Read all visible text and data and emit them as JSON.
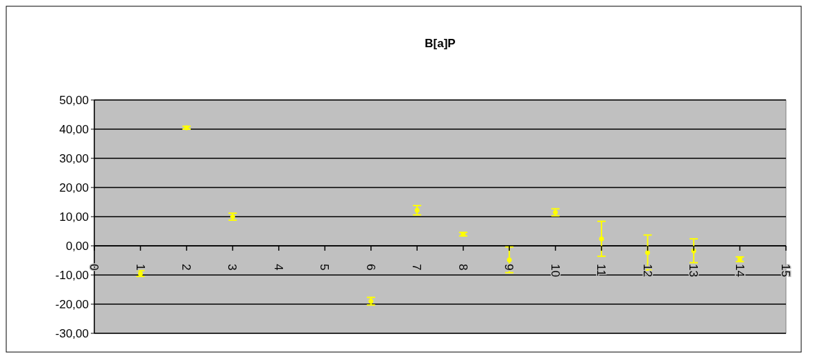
{
  "chart_data": {
    "type": "scatter",
    "title": "B[a]P",
    "x": [
      1,
      2,
      3,
      6,
      7,
      8,
      9,
      10,
      11,
      12,
      13,
      14
    ],
    "series": [
      {
        "color": "#ffff00",
        "values": [
          -9.5,
          40.5,
          10,
          -19,
          12.2,
          4,
          -4.8,
          11.5,
          2.4,
          -2.3,
          -1.7,
          -4.6
        ],
        "errors": [
          1,
          0.5,
          1.2,
          1.3,
          1.6,
          0.6,
          4.4,
          1.2,
          6,
          6,
          4.1,
          0.8
        ]
      }
    ],
    "xlim": [
      0,
      15
    ],
    "xticks": [
      0,
      1,
      2,
      3,
      4,
      5,
      6,
      7,
      8,
      9,
      10,
      11,
      12,
      13,
      14,
      15
    ],
    "ylim": [
      -30,
      50
    ],
    "yticks": [
      {
        "value": -30,
        "label": "-30,00"
      },
      {
        "value": -20,
        "label": "-20,00"
      },
      {
        "value": -10,
        "label": "-10,00"
      },
      {
        "value": 0,
        "label": "0,00"
      },
      {
        "value": 10,
        "label": "10,00"
      },
      {
        "value": 20,
        "label": "20,00"
      },
      {
        "value": 30,
        "label": "30,00"
      },
      {
        "value": 40,
        "label": "40,00"
      },
      {
        "value": 50,
        "label": "50,00"
      }
    ],
    "grid": "y",
    "marker": "circle"
  }
}
